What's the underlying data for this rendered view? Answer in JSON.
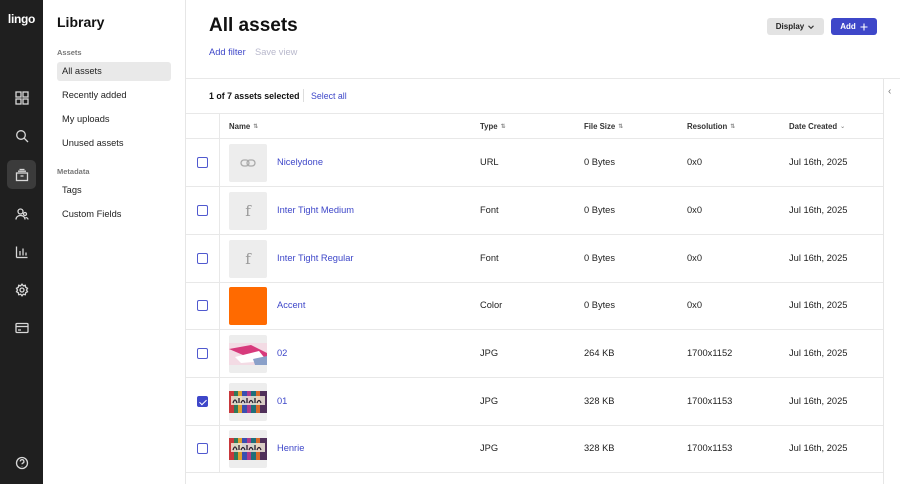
{
  "app": {
    "logo": "lingo"
  },
  "rail": {
    "items": [
      {
        "name": "apps-icon"
      },
      {
        "name": "search-icon"
      },
      {
        "name": "library-icon",
        "active": true
      },
      {
        "name": "users-icon"
      },
      {
        "name": "analytics-icon"
      },
      {
        "name": "gear-icon"
      },
      {
        "name": "billing-icon"
      }
    ],
    "bottom": {
      "name": "help-icon"
    }
  },
  "library": {
    "title": "Library",
    "assets_section": "Assets",
    "assets_items": [
      "All assets",
      "Recently added",
      "My uploads",
      "Unused assets"
    ],
    "metadata_section": "Metadata",
    "metadata_items": [
      "Tags",
      "Custom Fields"
    ]
  },
  "header": {
    "title": "All assets",
    "display_label": "Display",
    "add_label": "Add",
    "add_filter": "Add filter",
    "save_view": "Save view"
  },
  "selection": {
    "summary": "1 of 7 assets selected",
    "select_all": "Select all"
  },
  "table": {
    "columns": {
      "name": "Name",
      "type": "Type",
      "file_size": "File Size",
      "resolution": "Resolution",
      "date_created": "Date Created"
    },
    "rows": [
      {
        "name": "Nicelydone",
        "type": "URL",
        "size": "0 Bytes",
        "resolution": "0x0",
        "date": "Jul 16th, 2025",
        "thumb": "link",
        "checked": false
      },
      {
        "name": "Inter Tight Medium",
        "type": "Font",
        "size": "0 Bytes",
        "resolution": "0x0",
        "date": "Jul 16th, 2025",
        "thumb": "font",
        "checked": false
      },
      {
        "name": "Inter Tight Regular",
        "type": "Font",
        "size": "0 Bytes",
        "resolution": "0x0",
        "date": "Jul 16th, 2025",
        "thumb": "font",
        "checked": false
      },
      {
        "name": "Accent",
        "type": "Color",
        "size": "0 Bytes",
        "resolution": "0x0",
        "date": "Jul 16th, 2025",
        "thumb": "color",
        "color": "#FF6A00",
        "checked": false
      },
      {
        "name": "02",
        "type": "JPG",
        "size": "264 KB",
        "resolution": "1700x1152",
        "date": "Jul 16th, 2025",
        "thumb": "photo-pink",
        "checked": false
      },
      {
        "name": "01",
        "type": "JPG",
        "size": "328 KB",
        "resolution": "1700x1153",
        "date": "Jul 16th, 2025",
        "thumb": "photo-henrie",
        "checked": true
      },
      {
        "name": "Henrie",
        "type": "JPG",
        "size": "328 KB",
        "resolution": "1700x1153",
        "date": "Jul 16th, 2025",
        "thumb": "photo-henrie",
        "checked": false
      }
    ]
  },
  "colors": {
    "accent": "#3E47C9",
    "rail": "#1F1F1F"
  }
}
